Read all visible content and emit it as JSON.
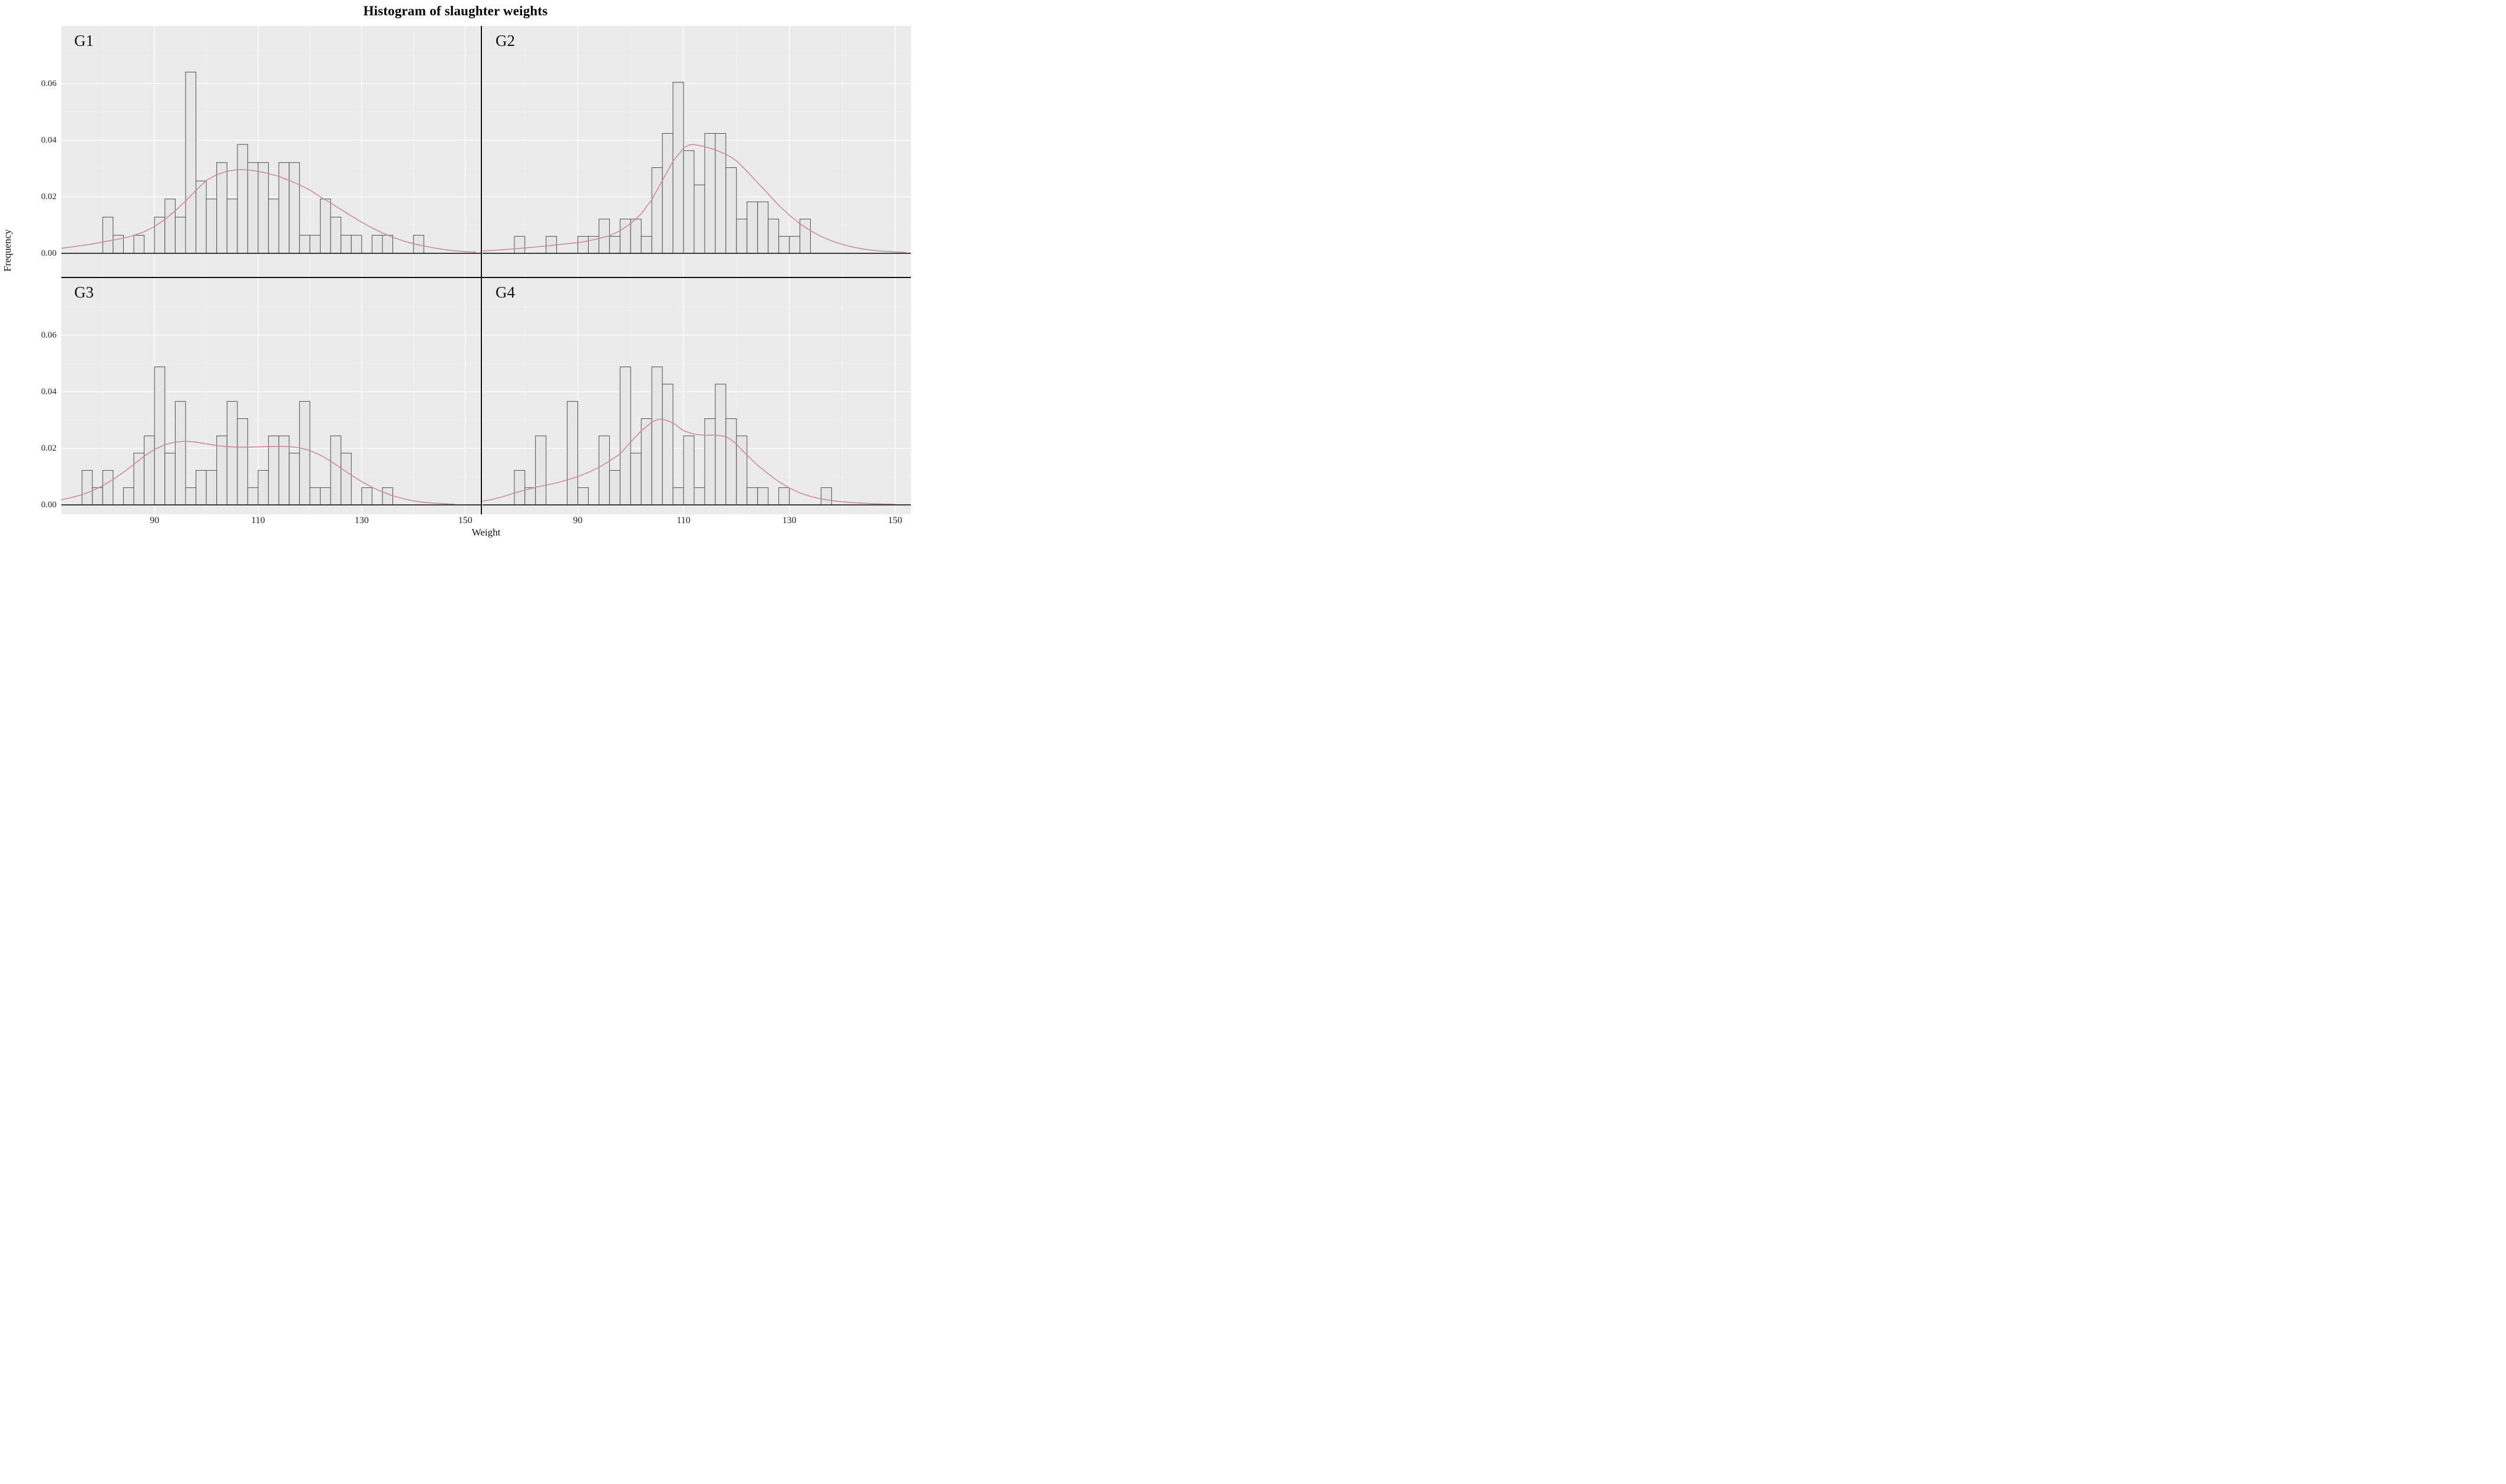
{
  "title": "Histogram of slaughter weights",
  "chart_data": {
    "type": "bar",
    "subtype": "faceted-histogram-with-density",
    "title": "Histogram of slaughter weights",
    "xlabel": "Weight",
    "ylabel": "Frequency",
    "x_ticks": [
      90,
      110,
      130,
      150
    ],
    "x_tick_labels": [
      "90",
      "110",
      "130",
      "150"
    ],
    "y_ticks": [
      0,
      0.02,
      0.04,
      0.06
    ],
    "y_tick_labels": [
      "0.00",
      "0.02",
      "0.04",
      "0.06"
    ],
    "x_minor_gridlines": [
      80,
      100,
      120,
      140
    ],
    "y_minor_gridlines": [
      0.01,
      0.03,
      0.05,
      0.07
    ],
    "x_domain": [
      72,
      153
    ],
    "y_domain": [
      0,
      0.0805
    ],
    "bin_width": 2,
    "grid": "on",
    "legend": "none",
    "colors": {
      "panel_background": "#ebebeb",
      "major_gridline": "#fafafa",
      "minor_gridline": "#f2f2f2",
      "bar_fill": "#e6e6e6",
      "bar_stroke": "#4d4d4d",
      "density_curve": "#c98b9a",
      "axis_line": "#3d3d3d",
      "facet_divider": "#111111",
      "text": "#111111"
    },
    "facets": [
      {
        "name": "G1",
        "bars": [
          [
            80,
            0.0128
          ],
          [
            82,
            0.0064
          ],
          [
            86,
            0.0064
          ],
          [
            90,
            0.0128
          ],
          [
            92,
            0.0192
          ],
          [
            94,
            0.0128
          ],
          [
            96,
            0.0641
          ],
          [
            98,
            0.0256
          ],
          [
            100,
            0.0192
          ],
          [
            102,
            0.0321
          ],
          [
            104,
            0.0192
          ],
          [
            106,
            0.0385
          ],
          [
            108,
            0.0321
          ],
          [
            110,
            0.0321
          ],
          [
            112,
            0.0192
          ],
          [
            114,
            0.0321
          ],
          [
            116,
            0.0321
          ],
          [
            118,
            0.0064
          ],
          [
            120,
            0.0064
          ],
          [
            122,
            0.0192
          ],
          [
            124,
            0.0128
          ],
          [
            126,
            0.0064
          ],
          [
            128,
            0.0064
          ],
          [
            132,
            0.0064
          ],
          [
            134,
            0.0064
          ],
          [
            140,
            0.0064
          ]
        ],
        "curve": [
          [
            72,
            0.0018
          ],
          [
            75,
            0.0025
          ],
          [
            78,
            0.0033
          ],
          [
            80,
            0.004
          ],
          [
            83,
            0.005
          ],
          [
            85,
            0.0058
          ],
          [
            88,
            0.0076
          ],
          [
            90,
            0.0095
          ],
          [
            92,
            0.012
          ],
          [
            94,
            0.015
          ],
          [
            96,
            0.0185
          ],
          [
            98,
            0.0222
          ],
          [
            100,
            0.0258
          ],
          [
            102,
            0.0278
          ],
          [
            104,
            0.029
          ],
          [
            106,
            0.0296
          ],
          [
            108,
            0.0295
          ],
          [
            110,
            0.029
          ],
          [
            112,
            0.0282
          ],
          [
            114,
            0.0272
          ],
          [
            116,
            0.0258
          ],
          [
            118,
            0.0242
          ],
          [
            120,
            0.0224
          ],
          [
            122,
            0.02
          ],
          [
            124,
            0.0178
          ],
          [
            126,
            0.0155
          ],
          [
            128,
            0.0132
          ],
          [
            130,
            0.011
          ],
          [
            132,
            0.009
          ],
          [
            134,
            0.0072
          ],
          [
            136,
            0.0057
          ],
          [
            138,
            0.0044
          ],
          [
            140,
            0.0034
          ],
          [
            142,
            0.0026
          ],
          [
            144,
            0.0019
          ],
          [
            146,
            0.0013
          ],
          [
            148,
            0.0009
          ],
          [
            150,
            0.0006
          ],
          [
            152,
            0.0004
          ]
        ]
      },
      {
        "name": "G2",
        "bars": [
          [
            78,
            0.006
          ],
          [
            84,
            0.006
          ],
          [
            90,
            0.006
          ],
          [
            92,
            0.006
          ],
          [
            94,
            0.0121
          ],
          [
            96,
            0.006
          ],
          [
            98,
            0.0121
          ],
          [
            100,
            0.0121
          ],
          [
            102,
            0.006
          ],
          [
            104,
            0.0303
          ],
          [
            106,
            0.0424
          ],
          [
            108,
            0.0605
          ],
          [
            110,
            0.0363
          ],
          [
            112,
            0.0242
          ],
          [
            114,
            0.0424
          ],
          [
            116,
            0.0424
          ],
          [
            118,
            0.0303
          ],
          [
            120,
            0.0121
          ],
          [
            122,
            0.0182
          ],
          [
            124,
            0.0182
          ],
          [
            126,
            0.0121
          ],
          [
            128,
            0.006
          ],
          [
            130,
            0.006
          ],
          [
            132,
            0.0121
          ]
        ],
        "curve": [
          [
            72,
            0.0008
          ],
          [
            76,
            0.0013
          ],
          [
            80,
            0.0019
          ],
          [
            84,
            0.0026
          ],
          [
            86,
            0.003
          ],
          [
            88,
            0.0034
          ],
          [
            90,
            0.0038
          ],
          [
            92,
            0.0044
          ],
          [
            94,
            0.0052
          ],
          [
            96,
            0.0062
          ],
          [
            98,
            0.008
          ],
          [
            100,
            0.0105
          ],
          [
            102,
            0.014
          ],
          [
            104,
            0.019
          ],
          [
            106,
            0.0258
          ],
          [
            108,
            0.0325
          ],
          [
            110,
            0.0372
          ],
          [
            111,
            0.0383
          ],
          [
            112,
            0.0385
          ],
          [
            114,
            0.0377
          ],
          [
            116,
            0.0366
          ],
          [
            118,
            0.035
          ],
          [
            119,
            0.034
          ],
          [
            120,
            0.0327
          ],
          [
            122,
            0.029
          ],
          [
            124,
            0.025
          ],
          [
            126,
            0.021
          ],
          [
            128,
            0.017
          ],
          [
            130,
            0.0135
          ],
          [
            132,
            0.0105
          ],
          [
            134,
            0.008
          ],
          [
            136,
            0.006
          ],
          [
            138,
            0.0044
          ],
          [
            140,
            0.0032
          ],
          [
            142,
            0.0022
          ],
          [
            144,
            0.0015
          ],
          [
            146,
            0.001
          ],
          [
            148,
            0.0007
          ],
          [
            150,
            0.0005
          ],
          [
            152,
            0.0003
          ]
        ]
      },
      {
        "name": "G3",
        "bars": [
          [
            76,
            0.0122
          ],
          [
            78,
            0.0061
          ],
          [
            80,
            0.0122
          ],
          [
            84,
            0.0061
          ],
          [
            86,
            0.0183
          ],
          [
            88,
            0.0244
          ],
          [
            90,
            0.0488
          ],
          [
            92,
            0.0183
          ],
          [
            94,
            0.0366
          ],
          [
            96,
            0.0061
          ],
          [
            98,
            0.0122
          ],
          [
            100,
            0.0122
          ],
          [
            102,
            0.0244
          ],
          [
            104,
            0.0366
          ],
          [
            106,
            0.0305
          ],
          [
            108,
            0.0061
          ],
          [
            110,
            0.0122
          ],
          [
            112,
            0.0244
          ],
          [
            114,
            0.0244
          ],
          [
            116,
            0.0183
          ],
          [
            118,
            0.0366
          ],
          [
            120,
            0.0061
          ],
          [
            122,
            0.0061
          ],
          [
            124,
            0.0244
          ],
          [
            126,
            0.0183
          ],
          [
            130,
            0.0061
          ],
          [
            134,
            0.0061
          ]
        ],
        "curve": [
          [
            72,
            0.0018
          ],
          [
            74,
            0.0026
          ],
          [
            76,
            0.0036
          ],
          [
            78,
            0.005
          ],
          [
            80,
            0.0068
          ],
          [
            82,
            0.009
          ],
          [
            84,
            0.0115
          ],
          [
            86,
            0.0143
          ],
          [
            88,
            0.0172
          ],
          [
            90,
            0.0196
          ],
          [
            92,
            0.0213
          ],
          [
            94,
            0.0222
          ],
          [
            96,
            0.0225
          ],
          [
            98,
            0.0222
          ],
          [
            100,
            0.0216
          ],
          [
            102,
            0.021
          ],
          [
            104,
            0.0206
          ],
          [
            106,
            0.0204
          ],
          [
            108,
            0.0204
          ],
          [
            110,
            0.0205
          ],
          [
            112,
            0.0206
          ],
          [
            114,
            0.0207
          ],
          [
            116,
            0.0206
          ],
          [
            118,
            0.0202
          ],
          [
            120,
            0.0192
          ],
          [
            122,
            0.0176
          ],
          [
            124,
            0.0155
          ],
          [
            126,
            0.013
          ],
          [
            128,
            0.0105
          ],
          [
            130,
            0.0082
          ],
          [
            132,
            0.0062
          ],
          [
            134,
            0.0046
          ],
          [
            136,
            0.0032
          ],
          [
            138,
            0.0022
          ],
          [
            140,
            0.0014
          ],
          [
            142,
            0.0009
          ],
          [
            144,
            0.0006
          ],
          [
            146,
            0.0004
          ],
          [
            148,
            0.0002
          ]
        ]
      },
      {
        "name": "G4",
        "bars": [
          [
            78,
            0.0122
          ],
          [
            80,
            0.0061
          ],
          [
            82,
            0.0244
          ],
          [
            88,
            0.0366
          ],
          [
            90,
            0.0061
          ],
          [
            94,
            0.0244
          ],
          [
            96,
            0.0122
          ],
          [
            98,
            0.0488
          ],
          [
            100,
            0.0183
          ],
          [
            102,
            0.0305
          ],
          [
            104,
            0.0488
          ],
          [
            106,
            0.0427
          ],
          [
            108,
            0.0061
          ],
          [
            110,
            0.0244
          ],
          [
            112,
            0.0061
          ],
          [
            114,
            0.0305
          ],
          [
            116,
            0.0427
          ],
          [
            118,
            0.0305
          ],
          [
            120,
            0.0244
          ],
          [
            122,
            0.0061
          ],
          [
            124,
            0.0061
          ],
          [
            128,
            0.0061
          ],
          [
            136,
            0.0061
          ]
        ],
        "curve": [
          [
            72,
            0.0013
          ],
          [
            74,
            0.002
          ],
          [
            76,
            0.003
          ],
          [
            78,
            0.0042
          ],
          [
            80,
            0.0052
          ],
          [
            82,
            0.0062
          ],
          [
            84,
            0.007
          ],
          [
            86,
            0.0078
          ],
          [
            88,
            0.0088
          ],
          [
            90,
            0.01
          ],
          [
            92,
            0.0115
          ],
          [
            94,
            0.0133
          ],
          [
            96,
            0.0155
          ],
          [
            98,
            0.018
          ],
          [
            100,
            0.0222
          ],
          [
            102,
            0.0262
          ],
          [
            104,
            0.0292
          ],
          [
            105,
            0.0301
          ],
          [
            106,
            0.0304
          ],
          [
            108,
            0.029
          ],
          [
            110,
            0.0262
          ],
          [
            112,
            0.025
          ],
          [
            114,
            0.0246
          ],
          [
            116,
            0.0247
          ],
          [
            118,
            0.0242
          ],
          [
            119,
            0.023
          ],
          [
            120,
            0.0215
          ],
          [
            121,
            0.0195
          ],
          [
            122,
            0.0176
          ],
          [
            124,
            0.014
          ],
          [
            126,
            0.011
          ],
          [
            128,
            0.0082
          ],
          [
            130,
            0.006
          ],
          [
            132,
            0.0042
          ],
          [
            134,
            0.003
          ],
          [
            136,
            0.0021
          ],
          [
            138,
            0.0015
          ],
          [
            140,
            0.0011
          ],
          [
            142,
            0.0008
          ],
          [
            144,
            0.0006
          ],
          [
            146,
            0.0004
          ],
          [
            148,
            0.0003
          ],
          [
            150,
            0.0002
          ]
        ]
      }
    ]
  }
}
